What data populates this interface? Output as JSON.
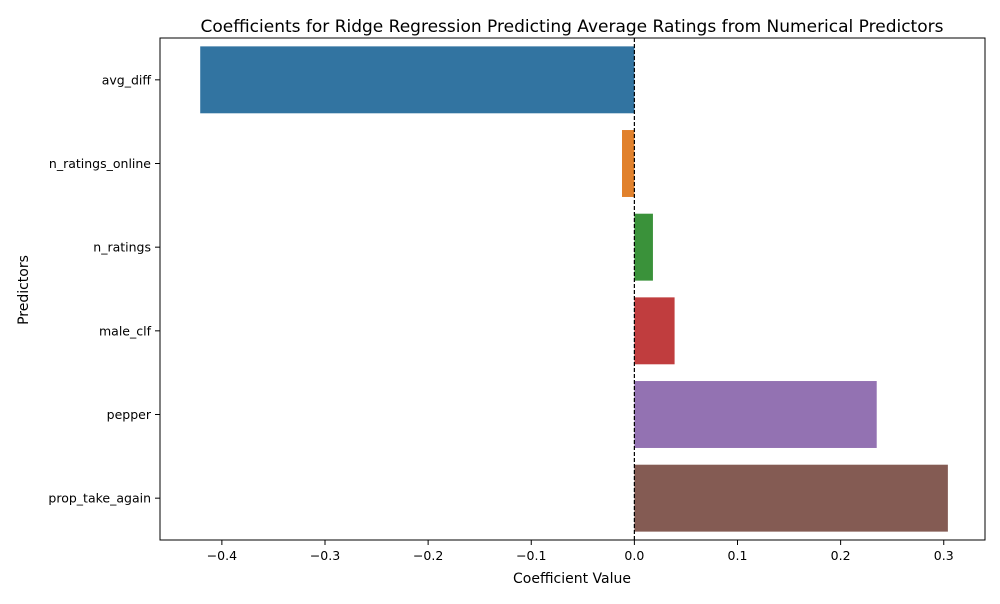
{
  "chart_data": {
    "type": "bar",
    "orientation": "horizontal",
    "title": "Coefficients for Ridge Regression Predicting Average Ratings from Numerical Predictors",
    "xlabel": "Coefficient Value",
    "ylabel": "Predictors",
    "categories": [
      "avg_diff",
      "n_ratings_online",
      "n_ratings",
      "male_clf",
      "pepper",
      "prop_take_again"
    ],
    "values": [
      -0.421,
      -0.012,
      0.018,
      0.039,
      0.235,
      0.304
    ],
    "colors": [
      "#3274a1",
      "#e1812c",
      "#3a923a",
      "#c03d3e",
      "#9372b2",
      "#845b53"
    ],
    "xlim": [
      -0.46,
      0.34
    ],
    "xticks": [
      -0.4,
      -0.3,
      -0.2,
      -0.1,
      0.0,
      0.1,
      0.2,
      0.3
    ],
    "xtick_labels": [
      "−0.4",
      "−0.3",
      "−0.2",
      "−0.1",
      "0.0",
      "0.1",
      "0.2",
      "0.3"
    ],
    "reference_line": {
      "x": 0,
      "style": "dashed",
      "color": "#000000"
    },
    "grid": false,
    "legend": false
  }
}
